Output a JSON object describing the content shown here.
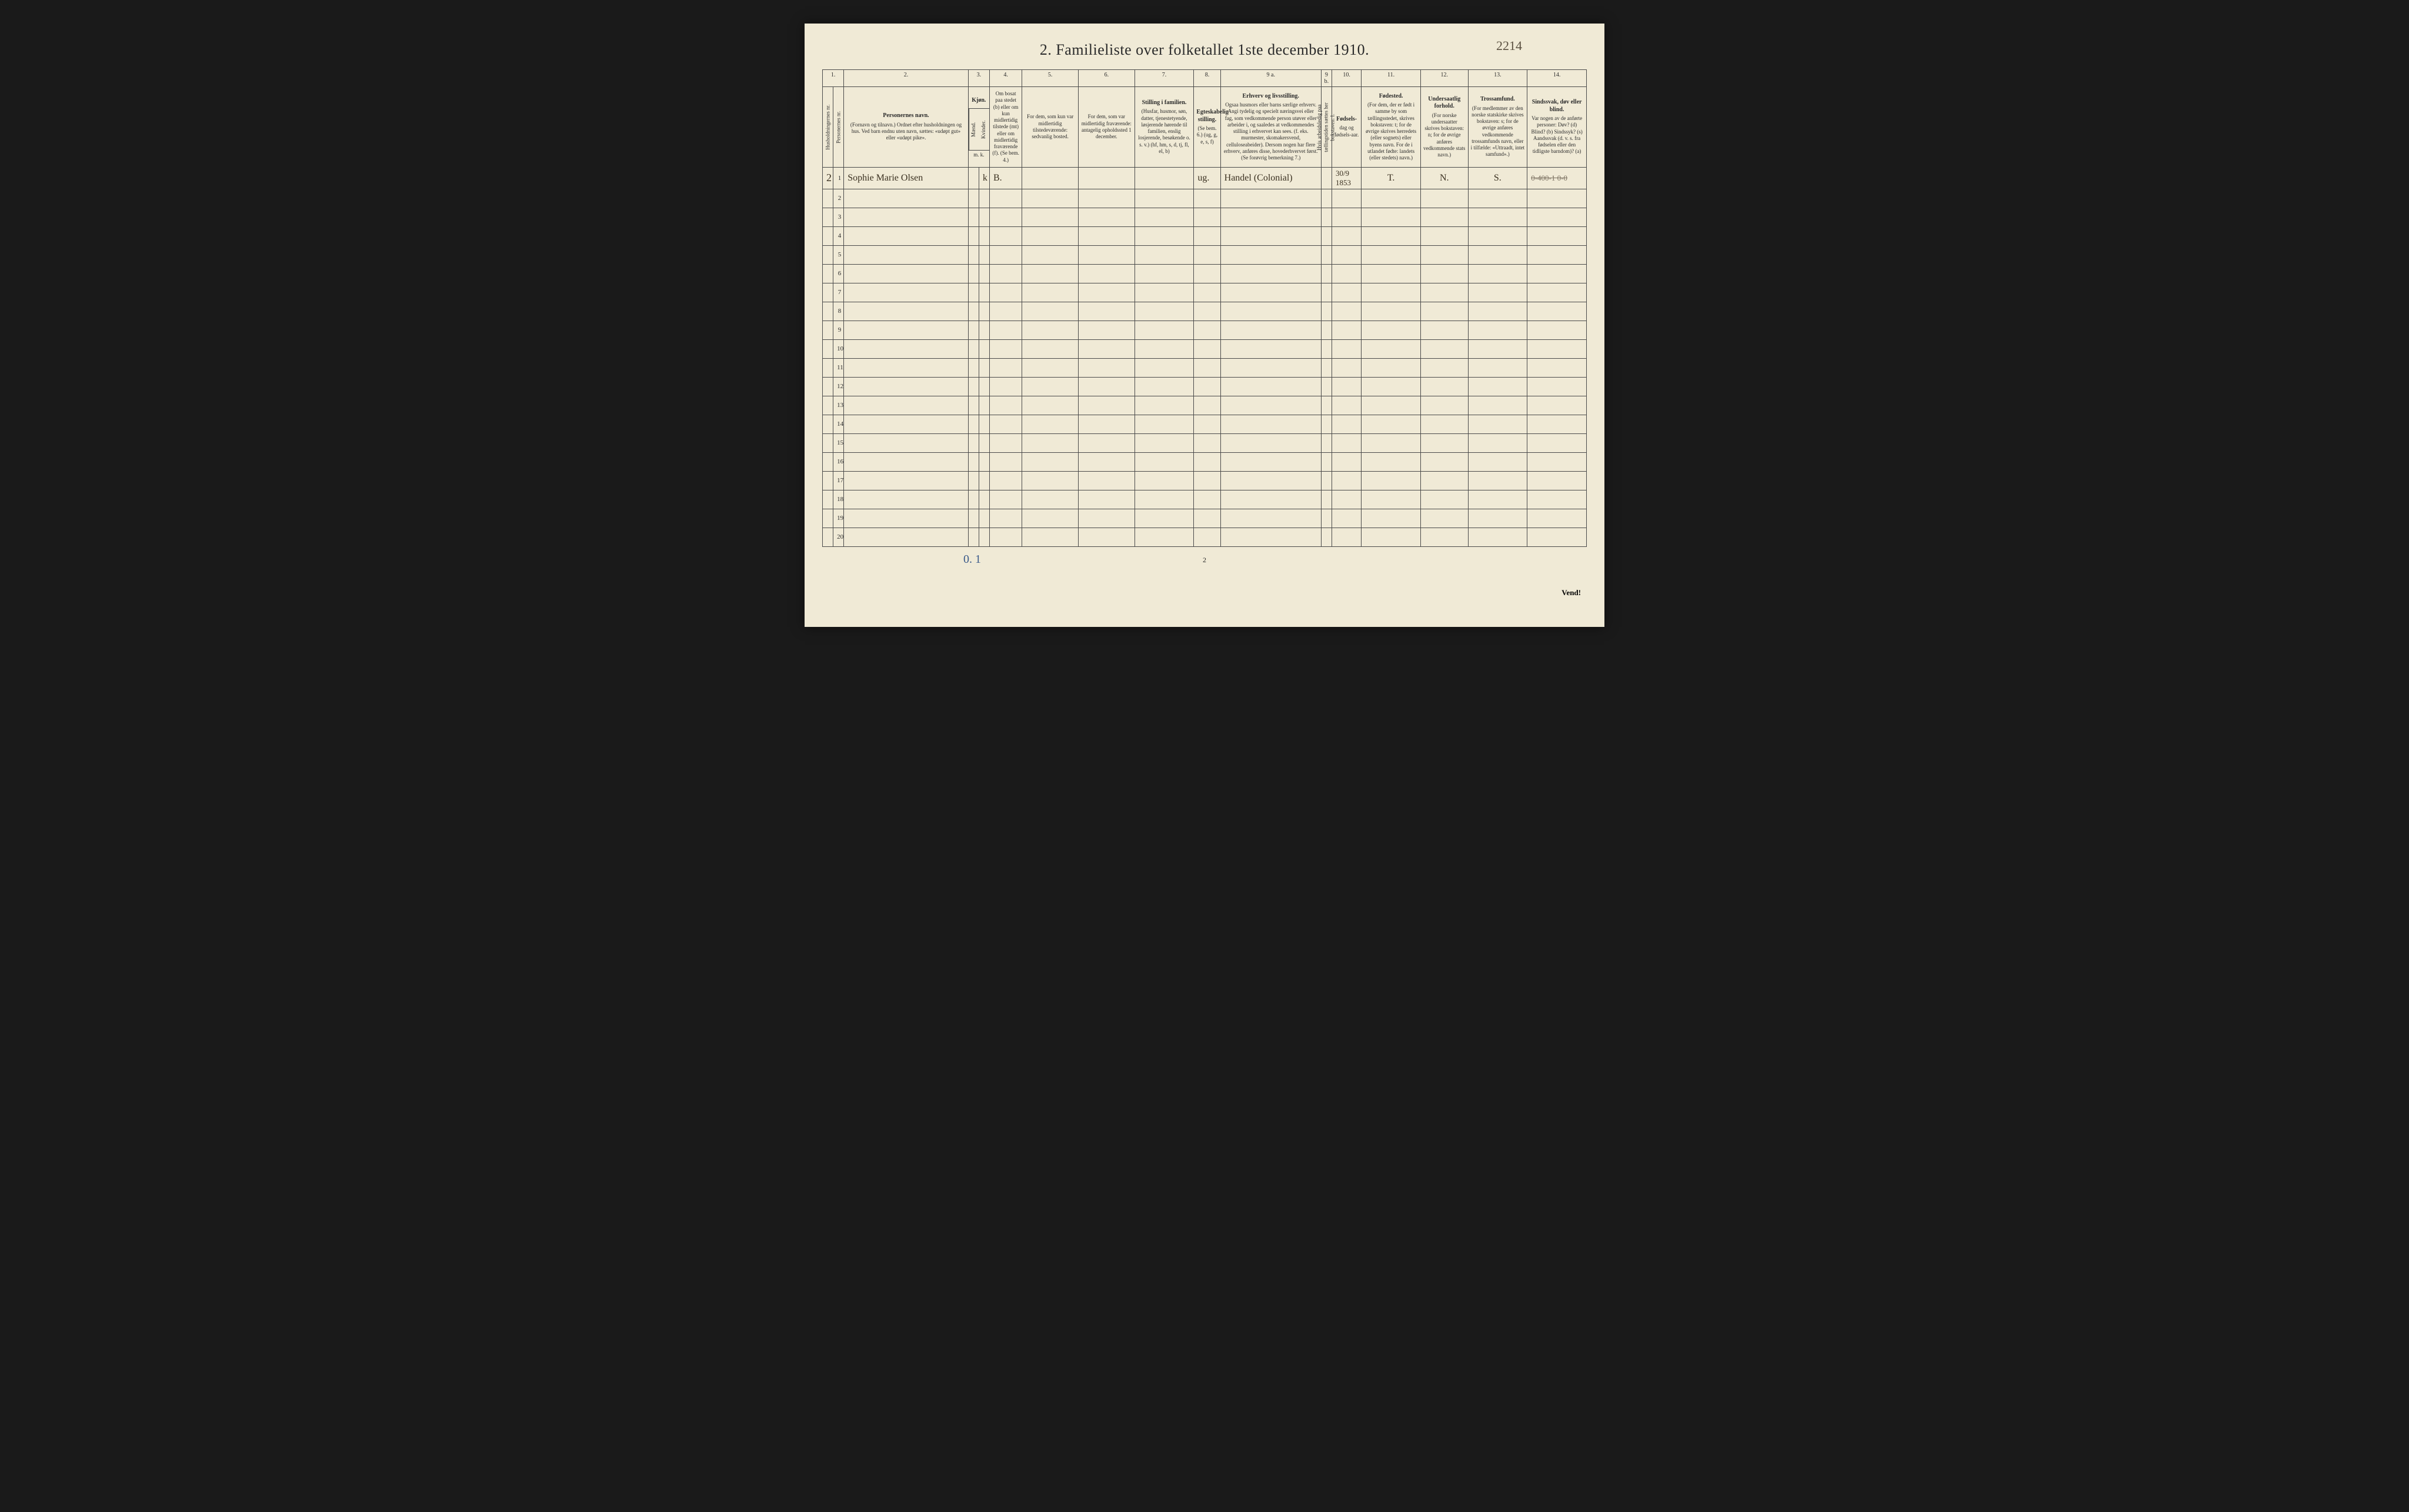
{
  "page_number_handwritten": "2214",
  "title": "2.  Familieliste over folketallet 1ste december 1910.",
  "column_numbers": [
    "1.",
    "2.",
    "3.",
    "4.",
    "5.",
    "6.",
    "7.",
    "8.",
    "9 a.",
    "9 b.",
    "10.",
    "11.",
    "12.",
    "13.",
    "14."
  ],
  "headers": {
    "c1a": "Husholdningernes nr.",
    "c1b": "Personernes nr.",
    "c2_bold": "Personernes navn.",
    "c2": "(Fornavn og tilnavn.)\nOrdnet efter husholdningen og hus.\nVed barn endnu uten navn, sættes: «udøpt gut» eller «udøpt pike».",
    "c3_bold": "Kjøn.",
    "c3a": "Mænd.",
    "c3b": "Kvinder.",
    "c3_sub": "m.   k.",
    "c4": "Om bosat paa stedet (b) eller om kun midlertidig tilstede (mt) eller om midlertidig fraværende (f). (Se bem. 4.)",
    "c5": "For dem, som kun var midlertidig tilstedeværende:\nsedvanlig bosted.",
    "c6": "For dem, som var midlertidig fraværende:\nantagelig opholdssted 1 december.",
    "c7_bold": "Stilling i familien.",
    "c7": "(Husfar, husmor, søn, datter, tjenestetyende, løsjerende hørende til familien, enslig losjerende, besøkende o. s. v.)\n(hf, hm, s, d, tj, fl, el, b)",
    "c8_bold": "Egteskabelig stilling.",
    "c8": "(Se bem. 6.)\n(ug, g, e, s, f)",
    "c9a_bold": "Erhverv og livsstilling.",
    "c9a": "Ogsaa husmors eller barns særlige erhverv. Angi tydelig og specielt næringsvei eller fag, som vedkommende person utøver eller arbeider i, og saaledes at vedkommendes stilling i erhvervet kan sees. (f. eks. murmester, skomakersvend, celluloseabeider). Dersom nogen har flere erhverv, anføres disse, hovederhvervet først.\n(Se forøvrig bemerkning 7.)",
    "c9b": "Hvis arbeidsledig paa tællingstiden sættes her bokstaven: l.",
    "c10_bold": "Fødsels-",
    "c10": "dag\nog\nfødsels-aar.",
    "c11_bold": "Fødested.",
    "c11": "(For dem, der er født i samme by som tællingsstedet, skrives bokstaven: t; for de øvrige skrives herredets (eller sognets) eller byens navn. For de i utlandet fødte: landets (eller stedets) navn.)",
    "c12_bold": "Undersaatlig forhold.",
    "c12": "(For norske undersaatter skrives bokstaven: n; for de øvrige anføres vedkommende stats navn.)",
    "c13_bold": "Trossamfund.",
    "c13": "(For medlemmer av den norske statskirke skrives bokstaven: s; for de øvrige anføres vedkommende trossamfunds navn, eller i tilfælde: «Uttraadt, intet samfund».)",
    "c14_bold": "Sindssvak, døv eller blind.",
    "c14": "Var nogen av de anførte personer:\nDøv?      (d)\nBlind?    (b)\nSindssyk? (s)\nAandssvak (d. v. s. fra fødselen eller den tidligste barndom)? (a)"
  },
  "rows": [
    {
      "hh": "2",
      "pn": "1",
      "name": "Sophie Marie Olsen",
      "sex_m": "",
      "sex_k": "k",
      "residence": "B.",
      "c5": "",
      "c6": "",
      "family_pos": "",
      "marital": "ug.",
      "occupation": "Handel (Colonial)",
      "c9b": "",
      "birth": "30/9 1853",
      "birthplace": "T.",
      "nationality": "N.",
      "religion": "S.",
      "disability_struck": "0-400-1  0-0"
    }
  ],
  "blank_row_numbers": [
    "2",
    "3",
    "4",
    "5",
    "6",
    "7",
    "8",
    "9",
    "10",
    "11",
    "12",
    "13",
    "14",
    "15",
    "16",
    "17",
    "18",
    "19",
    "20"
  ],
  "bottom_left_annotation": "0. 1",
  "bottom_page_number": "2",
  "vend_text": "Vend!",
  "colors": {
    "paper": "#f0ead6",
    "ink": "#2a2a2a",
    "handwriting": "#3a3020",
    "border": "#4a4a4a",
    "blue_pencil": "#3a5a8a"
  }
}
